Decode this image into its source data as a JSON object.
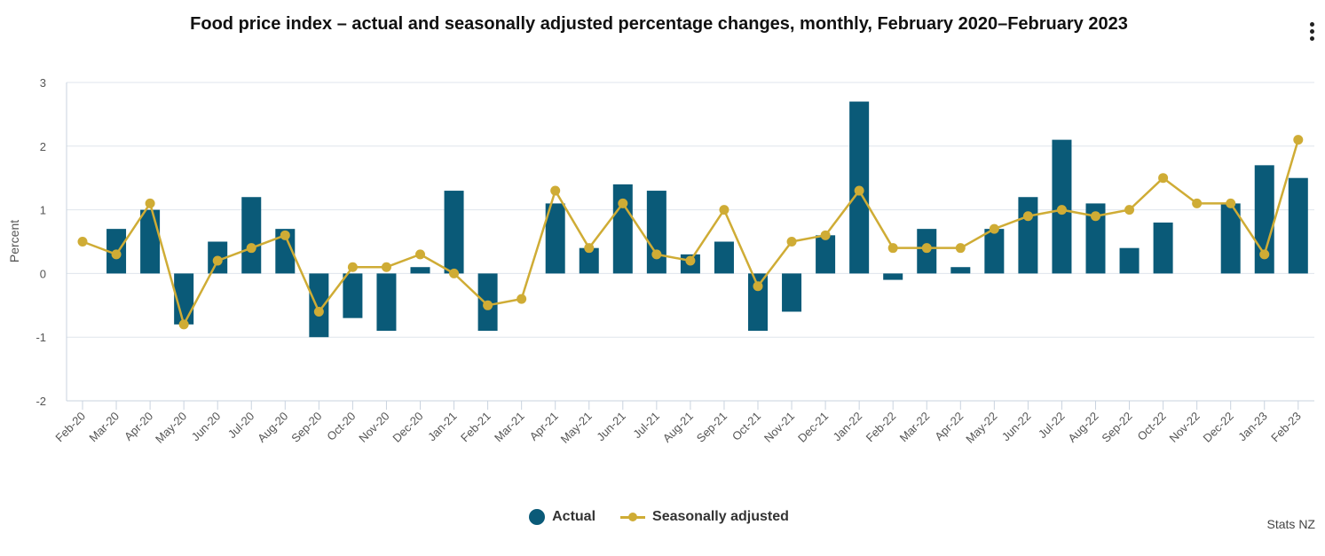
{
  "title": "Food price index – actual and seasonally adjusted percentage changes, monthly, February 2020–February 2023",
  "credit": "Stats NZ",
  "colors": {
    "actual": "#0a5a78",
    "seasonal": "#cfac35",
    "grid": "#dfe5ec",
    "axis": "#c9d3df",
    "text": "#555555"
  },
  "chart_data": {
    "type": "bar",
    "title": "Food price index – actual and seasonally adjusted percentage changes, monthly, February 2020–February 2023",
    "ylabel": "Percent",
    "xlabel": "",
    "ylim": [
      -2,
      3
    ],
    "yticks": [
      3,
      2,
      1,
      0,
      -1,
      -2
    ],
    "grid": true,
    "legend_position": "bottom",
    "categories": [
      "Feb-20",
      "Mar-20",
      "Apr-20",
      "May-20",
      "Jun-20",
      "Jul-20",
      "Aug-20",
      "Sep-20",
      "Oct-20",
      "Nov-20",
      "Dec-20",
      "Jan-21",
      "Feb-21",
      "Mar-21",
      "Apr-21",
      "May-21",
      "Jun-21",
      "Jul-21",
      "Aug-21",
      "Sep-21",
      "Oct-21",
      "Nov-21",
      "Dec-21",
      "Jan-22",
      "Feb-22",
      "Mar-22",
      "Apr-22",
      "May-22",
      "Jun-22",
      "Jul-22",
      "Aug-22",
      "Sep-22",
      "Oct-22",
      "Nov-22",
      "Dec-22",
      "Jan-23",
      "Feb-23"
    ],
    "series": [
      {
        "name": "Actual",
        "type": "bar",
        "values": [
          0,
          0.7,
          1.0,
          -0.8,
          0.5,
          1.2,
          0.7,
          -1.0,
          -0.7,
          -0.9,
          0.1,
          1.3,
          -0.9,
          0,
          1.1,
          0.4,
          1.4,
          1.3,
          0.3,
          0.5,
          -0.9,
          -0.6,
          0.6,
          2.7,
          -0.1,
          0.7,
          0.1,
          0.7,
          1.2,
          2.1,
          1.1,
          0.4,
          0.8,
          0,
          1.1,
          1.7,
          1.5
        ]
      },
      {
        "name": "Seasonally adjusted",
        "type": "line",
        "values": [
          0.5,
          0.3,
          1.1,
          -0.8,
          0.2,
          0.4,
          0.6,
          -0.6,
          0.1,
          0.1,
          0.3,
          0.0,
          -0.5,
          -0.4,
          1.3,
          0.4,
          1.1,
          0.3,
          0.2,
          1.0,
          -0.2,
          0.5,
          0.6,
          1.3,
          0.4,
          0.4,
          0.4,
          0.7,
          0.9,
          1.0,
          0.9,
          1.0,
          1.5,
          1.1,
          1.1,
          0.3,
          2.1
        ]
      }
    ]
  }
}
